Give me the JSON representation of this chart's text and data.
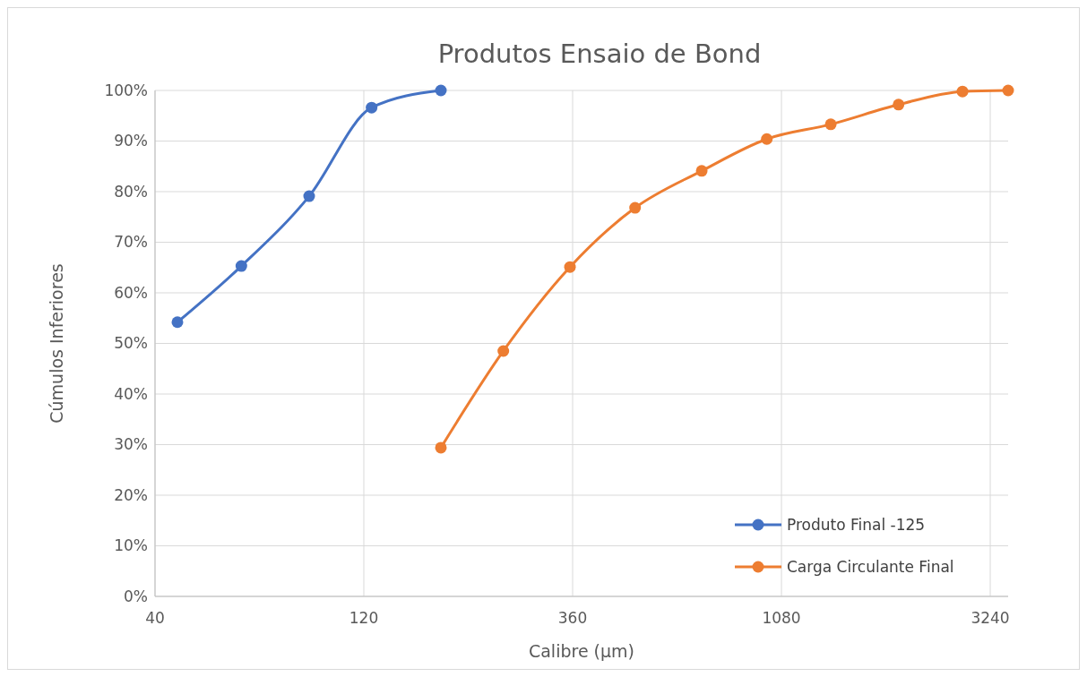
{
  "chart_data": {
    "type": "line",
    "title": "Produtos Ensaio de Bond",
    "xlabel": "Calibre (µm)",
    "ylabel": "Cúmulos Inferiores",
    "log": "x",
    "xlim": [
      40,
      3560
    ],
    "xticks": [
      40,
      120,
      360,
      1080,
      3240
    ],
    "ylim": [
      0,
      100
    ],
    "yticks": [
      {
        "value": 0,
        "label": "0%"
      },
      {
        "value": 10,
        "label": "10%"
      },
      {
        "value": 20,
        "label": "20%"
      },
      {
        "value": 30,
        "label": "30%"
      },
      {
        "value": 40,
        "label": "40%"
      },
      {
        "value": 50,
        "label": "50%"
      },
      {
        "value": 60,
        "label": "60%"
      },
      {
        "value": 70,
        "label": "70%"
      },
      {
        "value": 80,
        "label": "80%"
      },
      {
        "value": 90,
        "label": "90%"
      },
      {
        "value": 100,
        "label": "100%"
      }
    ],
    "grid": true,
    "legend": "bottom right",
    "marker": "circle",
    "line_style": "solid",
    "series": [
      {
        "name": "Produto Final -125",
        "color": "#4472c4",
        "x": [
          45,
          63,
          90,
          125,
          180
        ],
        "values": [
          54.2,
          65.3,
          79.1,
          96.6,
          100
        ]
      },
      {
        "name": "Carga Circulante Final",
        "color": "#ed7d31",
        "x": [
          180,
          250,
          355,
          500,
          710,
          1000,
          1400,
          2000,
          2800,
          3560
        ],
        "values": [
          29.4,
          48.5,
          65.1,
          76.8,
          84.1,
          90.4,
          93.3,
          97.2,
          99.8,
          100
        ]
      }
    ]
  }
}
